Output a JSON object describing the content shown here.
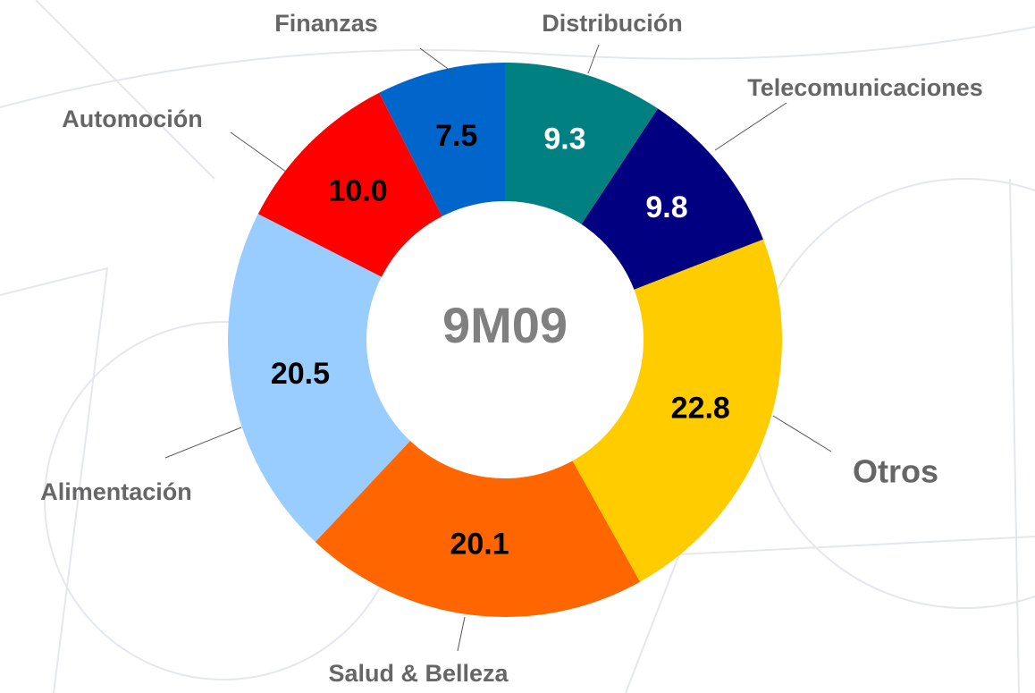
{
  "chart_data": {
    "type": "pie",
    "center_label": "9M09",
    "categories": [
      "Distribución",
      "Telecomunicaciones",
      "Otros",
      "Salud & Belleza",
      "Alimentación",
      "Automoción",
      "Finanzas"
    ],
    "values": [
      9.3,
      9.8,
      22.8,
      20.1,
      20.5,
      10.0,
      7.5
    ],
    "value_labels": [
      "9.3",
      "9.8",
      "22.8",
      "20.1",
      "20.5",
      "10.0",
      "7.5"
    ],
    "colors": [
      "#008080",
      "#000080",
      "#ffcc00",
      "#ff6600",
      "#99ccff",
      "#ff0000",
      "#0066cc"
    ],
    "label_colors": [
      "#ffffff",
      "#ffffff",
      "#000000",
      "#000000",
      "#000000",
      "#000000",
      "#000000"
    ]
  }
}
